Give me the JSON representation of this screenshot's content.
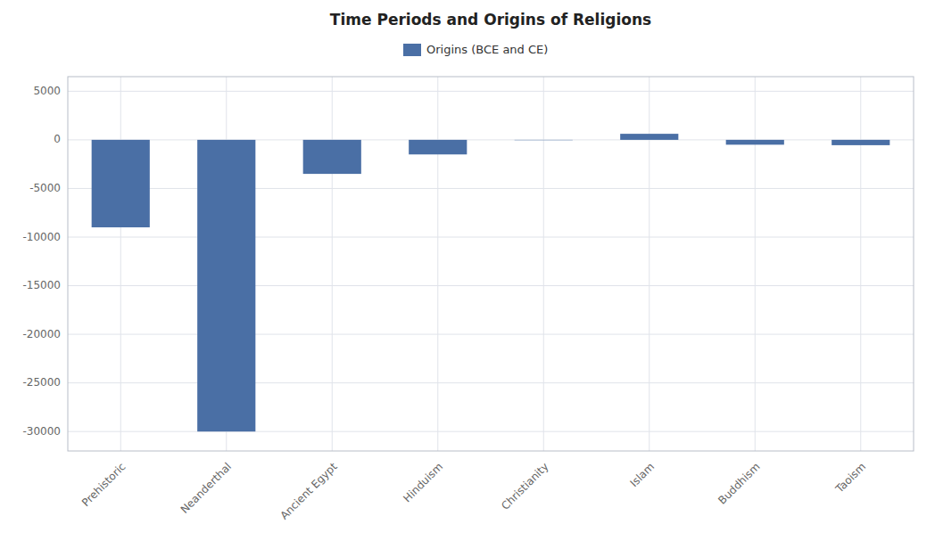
{
  "chart_data": {
    "type": "bar",
    "title": "Time Periods and Origins of Religions",
    "categories": [
      "Prehistoric",
      "Neanderthal",
      "Ancient Egypt",
      "Hinduism",
      "Christianity",
      "Islam",
      "Buddhism",
      "Taoism"
    ],
    "series": [
      {
        "name": "Origins (BCE and CE)",
        "color": "#4a6fa5",
        "values": [
          -9000,
          -30000,
          -3500,
          -1500,
          -33,
          622,
          -500,
          -550
        ]
      }
    ],
    "ylim": [
      -32000,
      6500
    ],
    "yticks": [
      5000,
      0,
      -5000,
      -10000,
      -15000,
      -20000,
      -25000,
      -30000
    ],
    "grid": true,
    "legend": "top"
  }
}
